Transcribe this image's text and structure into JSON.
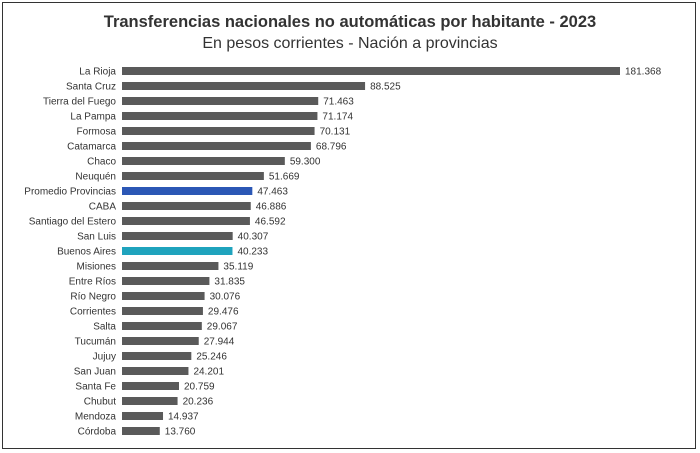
{
  "colors": {
    "default_bar": "#5a5a5a",
    "average_bar": "#2b57b5",
    "highlight_bar": "#1fa3bd",
    "text": "#333333"
  },
  "chart_data": {
    "type": "bar",
    "orientation": "horizontal",
    "title": "Transferencias nacionales no automáticas por habitante -  2023",
    "subtitle": "En pesos corrientes - Nación a provincias",
    "xlabel": "",
    "ylabel": "",
    "grid": false,
    "categories": [
      "La Rioja",
      "Santa Cruz",
      "Tierra del Fuego",
      "La Pampa",
      "Formosa",
      "Catamarca",
      "Chaco",
      "Neuquén",
      "Promedio Provincias",
      "CABA",
      "Santiago del Estero",
      "San Luis",
      "Buenos Aires",
      "Misiones",
      "Entre Ríos",
      "Río Negro",
      "Corrientes",
      "Salta",
      "Tucumán",
      "Jujuy",
      "San Juan",
      "Santa Fe",
      "Chubut",
      "Mendoza",
      "Córdoba"
    ],
    "values": [
      181368,
      88525,
      71463,
      71174,
      70131,
      68796,
      59300,
      51669,
      47463,
      46886,
      46592,
      40307,
      40233,
      35119,
      31835,
      30076,
      29476,
      29067,
      27944,
      25246,
      24201,
      20759,
      20236,
      14937,
      13760
    ],
    "value_labels": [
      "181.368",
      "88.525",
      "71.463",
      "71.174",
      "70.131",
      "68.796",
      "59.300",
      "51.669",
      "47.463",
      "46.886",
      "46.592",
      "40.307",
      "40.233",
      "35.119",
      "31.835",
      "30.076",
      "29.476",
      "29.067",
      "27.944",
      "25.246",
      "24.201",
      "20.759",
      "20.236",
      "14.937",
      "13.760"
    ],
    "bar_colors": [
      "#5a5a5a",
      "#5a5a5a",
      "#5a5a5a",
      "#5a5a5a",
      "#5a5a5a",
      "#5a5a5a",
      "#5a5a5a",
      "#5a5a5a",
      "#2b57b5",
      "#5a5a5a",
      "#5a5a5a",
      "#5a5a5a",
      "#1fa3bd",
      "#5a5a5a",
      "#5a5a5a",
      "#5a5a5a",
      "#5a5a5a",
      "#5a5a5a",
      "#5a5a5a",
      "#5a5a5a",
      "#5a5a5a",
      "#5a5a5a",
      "#5a5a5a",
      "#5a5a5a",
      "#5a5a5a"
    ],
    "xlim": [
      0,
      181368
    ]
  }
}
